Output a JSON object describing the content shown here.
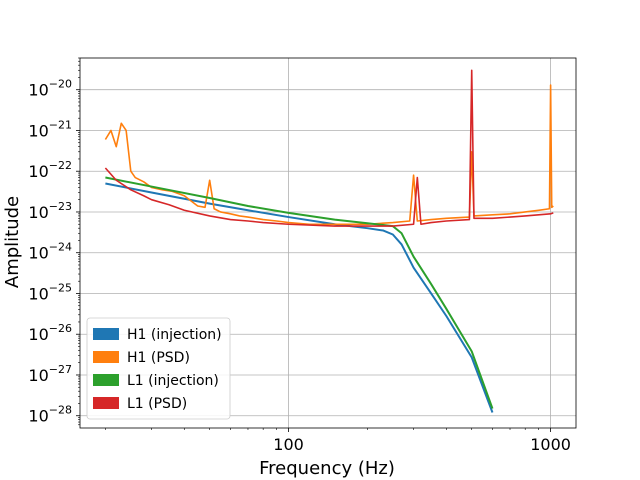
{
  "chart_data": {
    "type": "line",
    "title": "",
    "xlabel": "Frequency (Hz)",
    "ylabel": "Amplitude",
    "xscale": "log",
    "yscale": "log",
    "xlim": [
      16,
      1250
    ],
    "ylim": [
      5e-29,
      6e-20
    ],
    "grid": true,
    "legend_position": "lower-left",
    "x_ticks": [
      {
        "value": 100,
        "label": "100"
      },
      {
        "value": 1000,
        "label": "1000"
      }
    ],
    "y_ticks": [
      {
        "exponent": -28,
        "label_base": "10",
        "label_exp": "−28"
      },
      {
        "exponent": -27,
        "label_base": "10",
        "label_exp": "−27"
      },
      {
        "exponent": -26,
        "label_base": "10",
        "label_exp": "−26"
      },
      {
        "exponent": -25,
        "label_base": "10",
        "label_exp": "−25"
      },
      {
        "exponent": -24,
        "label_base": "10",
        "label_exp": "−24"
      },
      {
        "exponent": -23,
        "label_base": "10",
        "label_exp": "−23"
      },
      {
        "exponent": -22,
        "label_base": "10",
        "label_exp": "−22"
      },
      {
        "exponent": -21,
        "label_base": "10",
        "label_exp": "−21"
      },
      {
        "exponent": -20,
        "label_base": "10",
        "label_exp": "−20"
      }
    ],
    "series": [
      {
        "name": "H1 (injection)",
        "color": "#1f77b4",
        "x": [
          20,
          30,
          50,
          70,
          100,
          150,
          200,
          230,
          250,
          270,
          300,
          350,
          400,
          500,
          600
        ],
        "y": [
          5e-23,
          3e-23,
          1.6e-23,
          1.1e-23,
          7.5e-24,
          5e-24,
          4e-24,
          3.5e-24,
          2.8e-24,
          1.6e-24,
          4.3e-25,
          1e-25,
          2.8e-26,
          2.7e-27,
          1.2e-28
        ]
      },
      {
        "name": "H1 (PSD)",
        "color": "#ff7f0e",
        "x": [
          20,
          21,
          22,
          23,
          24,
          25,
          26,
          28,
          30,
          33,
          36,
          40,
          45,
          48,
          50,
          52,
          55,
          60,
          65,
          70,
          80,
          90,
          100,
          120,
          150,
          200,
          250,
          290,
          300,
          310,
          350,
          400,
          490,
          500,
          510,
          600,
          700,
          800,
          900,
          990,
          1000,
          1010,
          1024
        ],
        "y": [
          6e-22,
          1e-21,
          4e-22,
          1.5e-21,
          1e-21,
          1e-22,
          7e-23,
          5.5e-23,
          4e-23,
          3.5e-23,
          3.2e-23,
          2.5e-23,
          1.4e-23,
          1.3e-23,
          6e-23,
          1.2e-23,
          1e-23,
          9e-24,
          8e-24,
          7.5e-24,
          6.5e-24,
          6e-24,
          5.5e-24,
          5e-24,
          5e-24,
          5e-24,
          5.5e-24,
          6e-24,
          8e-23,
          6e-24,
          6.5e-24,
          7e-24,
          7.5e-24,
          3e-22,
          8e-24,
          8.5e-24,
          9e-24,
          1e-23,
          1.1e-23,
          1.2e-23,
          1.3e-20,
          1.3e-23,
          1.4e-23
        ]
      },
      {
        "name": "L1 (injection)",
        "color": "#2ca02c",
        "x": [
          20,
          30,
          50,
          70,
          100,
          150,
          200,
          250,
          270,
          300,
          350,
          400,
          500,
          600
        ],
        "y": [
          7e-23,
          4.2e-23,
          2.2e-23,
          1.4e-23,
          9.5e-24,
          6.5e-24,
          5.3e-24,
          4.5e-24,
          3e-24,
          8e-25,
          1.7e-25,
          4.2e-26,
          3.8e-27,
          1.5e-28
        ]
      },
      {
        "name": "L1 (PSD)",
        "color": "#d62728",
        "x": [
          20,
          22,
          25,
          28,
          30,
          35,
          40,
          50,
          60,
          70,
          80,
          100,
          150,
          200,
          250,
          300,
          310,
          320,
          350,
          400,
          490,
          500,
          510,
          600,
          700,
          800,
          900,
          1000,
          1024
        ],
        "y": [
          1.2e-22,
          6e-23,
          3.5e-23,
          2.5e-23,
          2e-23,
          1.5e-23,
          1.1e-23,
          8e-24,
          6.5e-24,
          6e-24,
          5.5e-24,
          5e-24,
          4.5e-24,
          4.5e-24,
          4.5e-24,
          5e-24,
          7e-23,
          5e-24,
          5.5e-24,
          6e-24,
          6.5e-24,
          3e-20,
          7e-24,
          7e-24,
          7.5e-24,
          8e-24,
          8.5e-24,
          9e-24,
          9.5e-24
        ]
      }
    ]
  }
}
